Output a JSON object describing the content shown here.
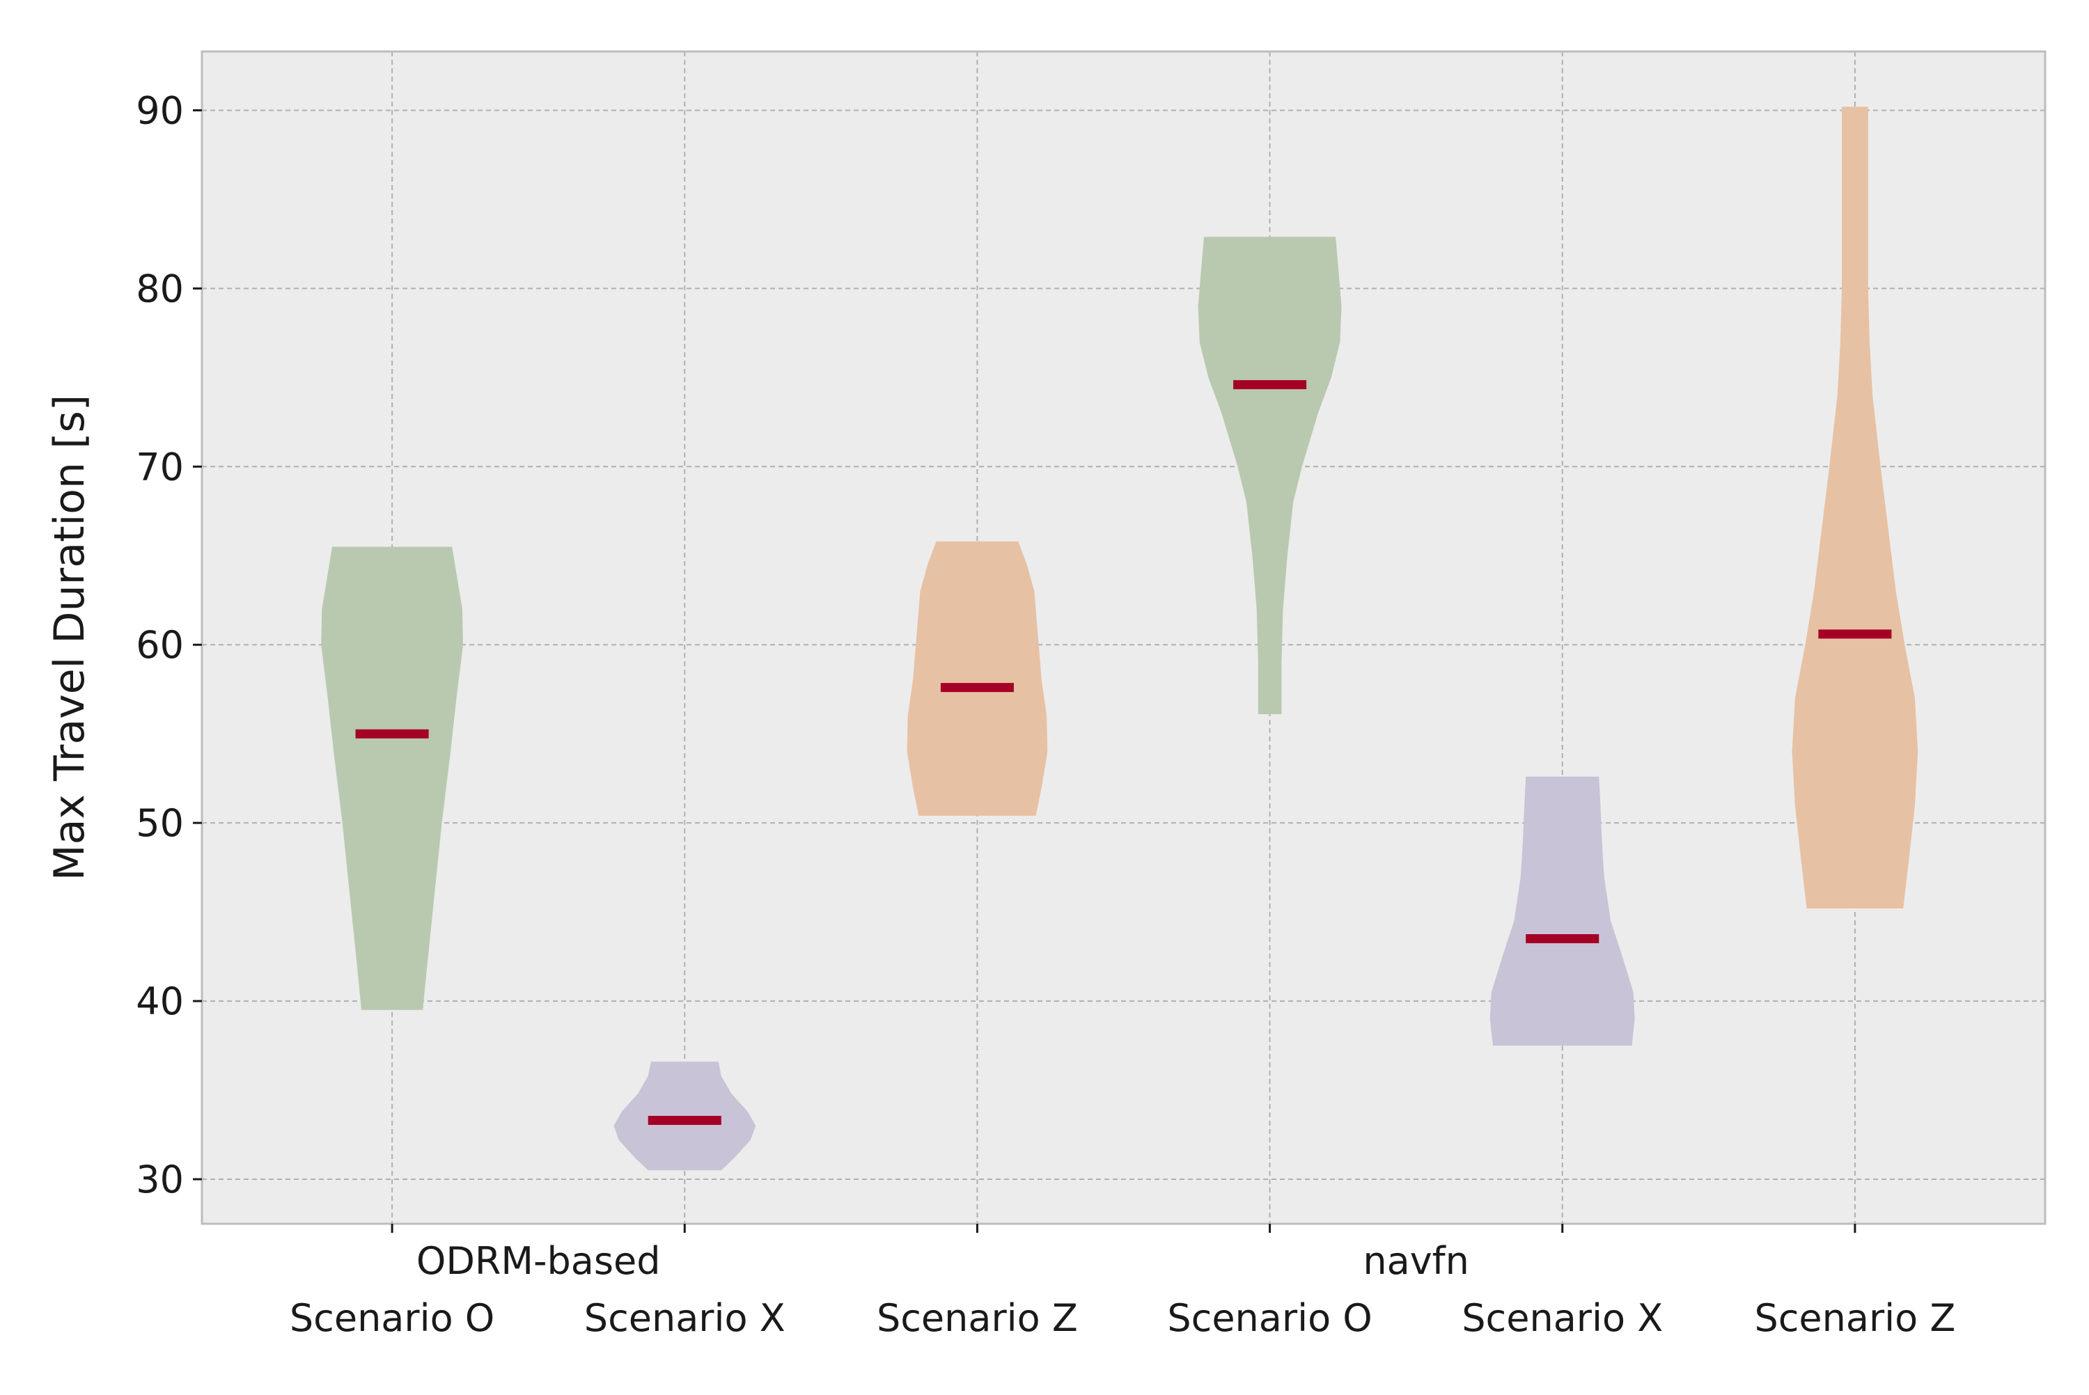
{
  "chart_data": {
    "type": "violin",
    "title": "",
    "ylabel": "Max Travel Duration [s]",
    "xlabel": "",
    "ylim": [
      27.5,
      93.3
    ],
    "yticks": [
      30,
      40,
      50,
      60,
      70,
      80,
      90
    ],
    "grid": true,
    "group_labels": [
      {
        "label": "ODRM-based",
        "center": 1.5
      },
      {
        "label": "navfn",
        "center": 4.5
      }
    ],
    "categories": [
      "Scenario O",
      "Scenario X",
      "Scenario Z",
      "Scenario O",
      "Scenario X",
      "Scenario Z"
    ],
    "median_color": "#a50026",
    "violins": [
      {
        "group": "ODRM-based",
        "scenario": "Scenario O",
        "color": "#b9c9b0",
        "min": 39.5,
        "max": 65.5,
        "median": 55.0,
        "profile": [
          [
            39.5,
            0.42
          ],
          [
            42,
            0.48
          ],
          [
            46,
            0.58
          ],
          [
            50,
            0.68
          ],
          [
            54,
            0.8
          ],
          [
            57,
            0.88
          ],
          [
            60,
            0.97
          ],
          [
            62,
            0.96
          ],
          [
            64,
            0.88
          ],
          [
            65.5,
            0.82
          ]
        ]
      },
      {
        "group": "ODRM-based",
        "scenario": "Scenario X",
        "color": "#c9c3d7",
        "min": 30.5,
        "max": 36.6,
        "median": 33.3,
        "profile": [
          [
            30.5,
            0.5
          ],
          [
            31.2,
            0.68
          ],
          [
            32.2,
            0.9
          ],
          [
            33.0,
            0.97
          ],
          [
            33.8,
            0.86
          ],
          [
            34.8,
            0.64
          ],
          [
            35.8,
            0.5
          ],
          [
            36.6,
            0.46
          ]
        ]
      },
      {
        "group": "ODRM-based",
        "scenario": "Scenario Z",
        "color": "#e7c1a4",
        "min": 50.4,
        "max": 65.8,
        "median": 57.6,
        "profile": [
          [
            50.4,
            0.8
          ],
          [
            52,
            0.88
          ],
          [
            54,
            0.96
          ],
          [
            56,
            0.95
          ],
          [
            58,
            0.88
          ],
          [
            61,
            0.82
          ],
          [
            63,
            0.78
          ],
          [
            64.5,
            0.68
          ],
          [
            65.8,
            0.56
          ]
        ]
      },
      {
        "group": "navfn",
        "scenario": "Scenario O",
        "color": "#b9c9b0",
        "min": 56.1,
        "max": 82.9,
        "median": 74.6,
        "profile": [
          [
            56.1,
            0.16
          ],
          [
            59,
            0.16
          ],
          [
            62,
            0.18
          ],
          [
            65,
            0.24
          ],
          [
            68,
            0.32
          ],
          [
            70,
            0.44
          ],
          [
            73,
            0.66
          ],
          [
            75,
            0.84
          ],
          [
            77,
            0.96
          ],
          [
            79,
            0.98
          ],
          [
            81,
            0.94
          ],
          [
            82.9,
            0.9
          ]
        ]
      },
      {
        "group": "navfn",
        "scenario": "Scenario X",
        "color": "#c9c3d7",
        "min": 37.5,
        "max": 52.6,
        "median": 43.5,
        "profile": [
          [
            37.5,
            0.95
          ],
          [
            39,
            0.99
          ],
          [
            40.5,
            0.97
          ],
          [
            42.5,
            0.82
          ],
          [
            44.5,
            0.66
          ],
          [
            47,
            0.57
          ],
          [
            49,
            0.54
          ],
          [
            51,
            0.52
          ],
          [
            52.6,
            0.5
          ]
        ]
      },
      {
        "group": "navfn",
        "scenario": "Scenario Z",
        "color": "#e7c1a4",
        "min": 45.2,
        "max": 90.2,
        "median": 60.6,
        "profile": [
          [
            45.2,
            0.66
          ],
          [
            48,
            0.74
          ],
          [
            51,
            0.82
          ],
          [
            54,
            0.86
          ],
          [
            57,
            0.82
          ],
          [
            60,
            0.68
          ],
          [
            63,
            0.56
          ],
          [
            67,
            0.44
          ],
          [
            70,
            0.35
          ],
          [
            74,
            0.24
          ],
          [
            77,
            0.2
          ],
          [
            80,
            0.18
          ],
          [
            84,
            0.18
          ],
          [
            88,
            0.18
          ],
          [
            90.2,
            0.18
          ]
        ]
      }
    ]
  }
}
